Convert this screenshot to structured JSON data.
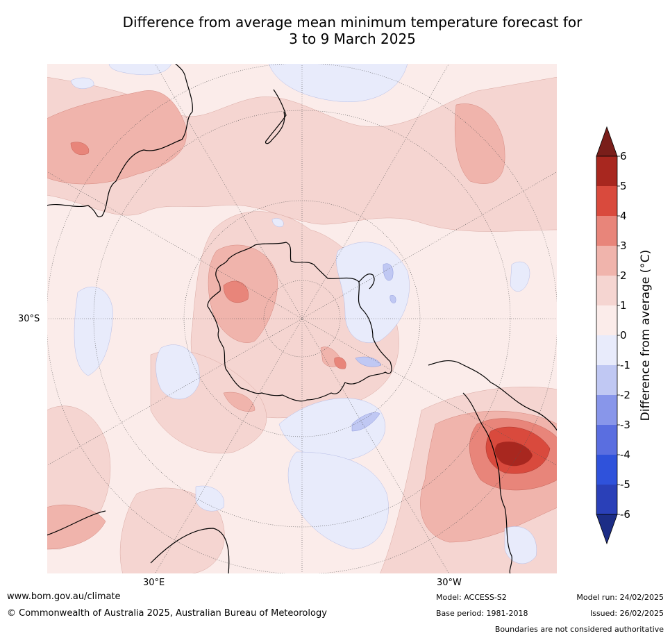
{
  "title_line1": "Difference from average mean minimum temperature forecast for",
  "title_line2": "3 to 9 March 2025",
  "lat_label": "30°S",
  "lon_labels": {
    "east": "30°E",
    "west": "30°W"
  },
  "colorbar": {
    "label": "Difference from average (°C)",
    "ticks": [
      "6",
      "5",
      "4",
      "3",
      "2",
      "1",
      "0",
      "-1",
      "-2",
      "-3",
      "-4",
      "-5",
      "-6"
    ],
    "colors": [
      "#7a1e1a",
      "#a8271f",
      "#d94a3d",
      "#e8857a",
      "#f0b4ac",
      "#f5d5d1",
      "#fbecea",
      "#e8ebfb",
      "#c0c8f3",
      "#8896ea",
      "#5a6ee0",
      "#2f52db",
      "#2a40b8",
      "#1c2d86"
    ]
  },
  "footer": {
    "website": "www.bom.gov.au/climate",
    "copyright": "© Commonwealth of Australia 2025, Australian Bureau of Meteorology",
    "model": "Model: ACCESS-S2",
    "base_period": "Base period: 1981-2018",
    "model_run": "Model run: 24/02/2025",
    "issued": "Issued: 26/02/2025",
    "disclaimer": "Boundaries are not considered authoritative"
  }
}
